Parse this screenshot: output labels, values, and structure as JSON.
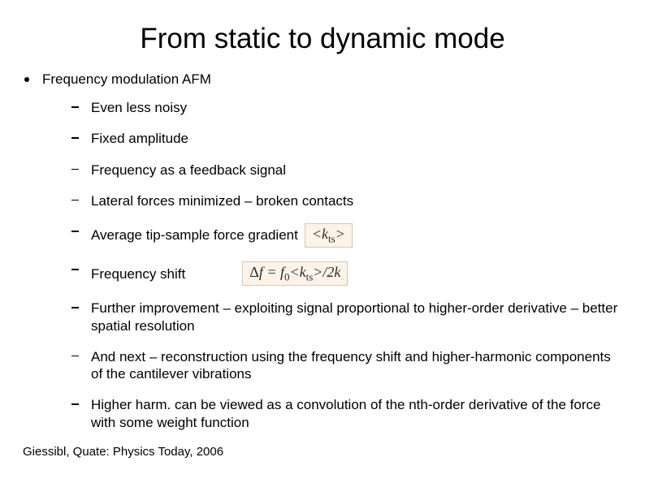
{
  "title": "From static to dynamic mode",
  "main": {
    "label": "Frequency modulation AFM",
    "items": [
      {
        "text": "Even less noisy"
      },
      {
        "text": "Fixed amplitude"
      },
      {
        "text": "Frequency as a feedback signal"
      },
      {
        "text": "Lateral forces minimized – broken contacts"
      },
      {
        "text": "Average tip-sample force gradient",
        "formula": {
          "html": "&lt;k<span class='sub-eq'>ts</span>&gt;",
          "bg": "#fdf3e7"
        }
      },
      {
        "text": "Frequency shift",
        "formula": {
          "html": "<span class='formula-sym'>Δ</span>f = f<span class='sub-eq'>0</span>&lt;k<span class='sub-eq'>ts</span>&gt;/2k",
          "bg": "#fdf3e7"
        }
      },
      {
        "text": "Further improvement – exploiting signal proportional to higher-order derivative – better spatial resolution"
      },
      {
        "text": "And next – reconstruction using the frequency shift and higher-harmonic components of the cantilever vibrations"
      },
      {
        "text": "Higher harm. can be viewed as a convolution of the nth-order derivative of the force with some weight function"
      }
    ]
  },
  "citation": "Giessibl, Quate: Physics Today, 2006",
  "colors": {
    "background": "#ffffff",
    "text": "#000000",
    "formula_bg": "#fdf3e7",
    "formula_border": "#d8c8b0"
  },
  "typography": {
    "title_fontsize": 35,
    "body_fontsize": 17,
    "citation_fontsize": 15,
    "font_family": "Arial"
  }
}
